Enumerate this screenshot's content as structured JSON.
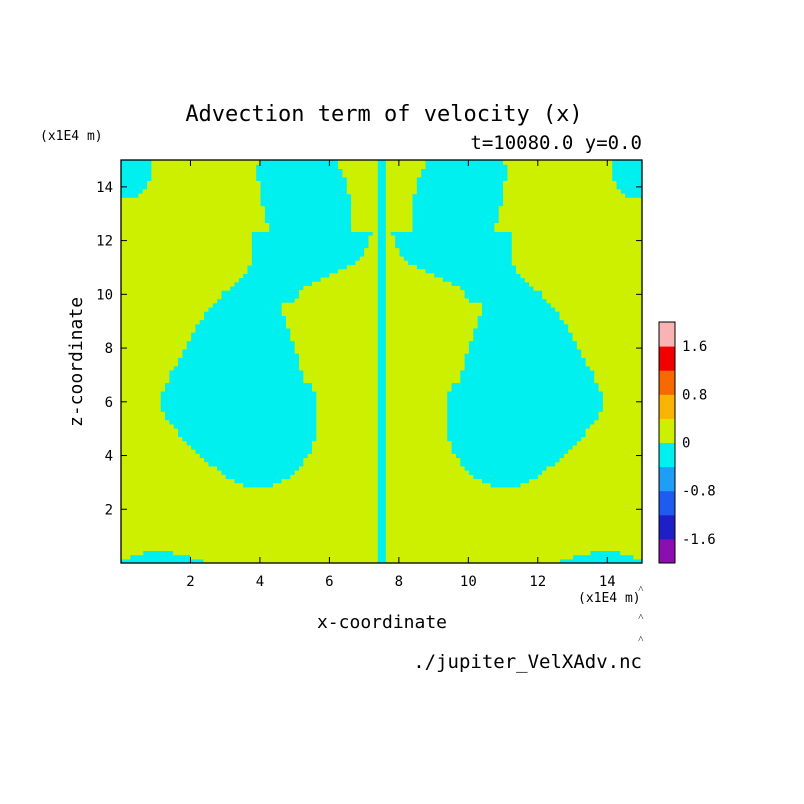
{
  "chart_data": {
    "type": "heatmap",
    "title": "Advection term of velocity (x)",
    "subtitle": "t=10080.0 y=0.0",
    "xlabel": "x-coordinate",
    "ylabel": "z-coordinate",
    "x_unit": "(x1E4 m)",
    "y_unit": "(x1E4 m)",
    "xlim": [
      0,
      15
    ],
    "ylim": [
      0,
      15
    ],
    "x_ticks": [
      2,
      4,
      6,
      8,
      10,
      12,
      14
    ],
    "y_ticks": [
      2,
      4,
      6,
      8,
      10,
      12,
      14
    ],
    "x_tick_labels": [
      "2",
      "4",
      "6",
      "8",
      "10",
      "12",
      "14"
    ],
    "y_tick_labels": [
      "2",
      "4",
      "6",
      "8",
      "10",
      "12",
      "14"
    ],
    "grid": false,
    "source_file": "./jupiter_VelXAdv.nc",
    "colorbar": {
      "position": "right",
      "levels": [
        -2.0,
        -1.6,
        -1.2,
        -0.8,
        -0.4,
        0,
        0.4,
        0.8,
        1.2,
        1.6,
        2.0
      ],
      "colors": [
        "#8b0fb0",
        "#1f1fc8",
        "#1e5cf0",
        "#1f9ef5",
        "#00f0f0",
        "#ccf000",
        "#f8b400",
        "#f86800",
        "#f00000",
        "#f8b4b4"
      ],
      "tick_values": [
        1.6,
        0.8,
        0,
        -0.8,
        -1.6
      ],
      "tick_labels": [
        "1.6",
        "0.8",
        "0",
        "-0.8",
        "-1.6"
      ]
    },
    "field_description_levels_present": [
      -0.4,
      0.4
    ],
    "field_colors": {
      "negative": "#00f0f0",
      "positive": "#ccf000"
    }
  }
}
